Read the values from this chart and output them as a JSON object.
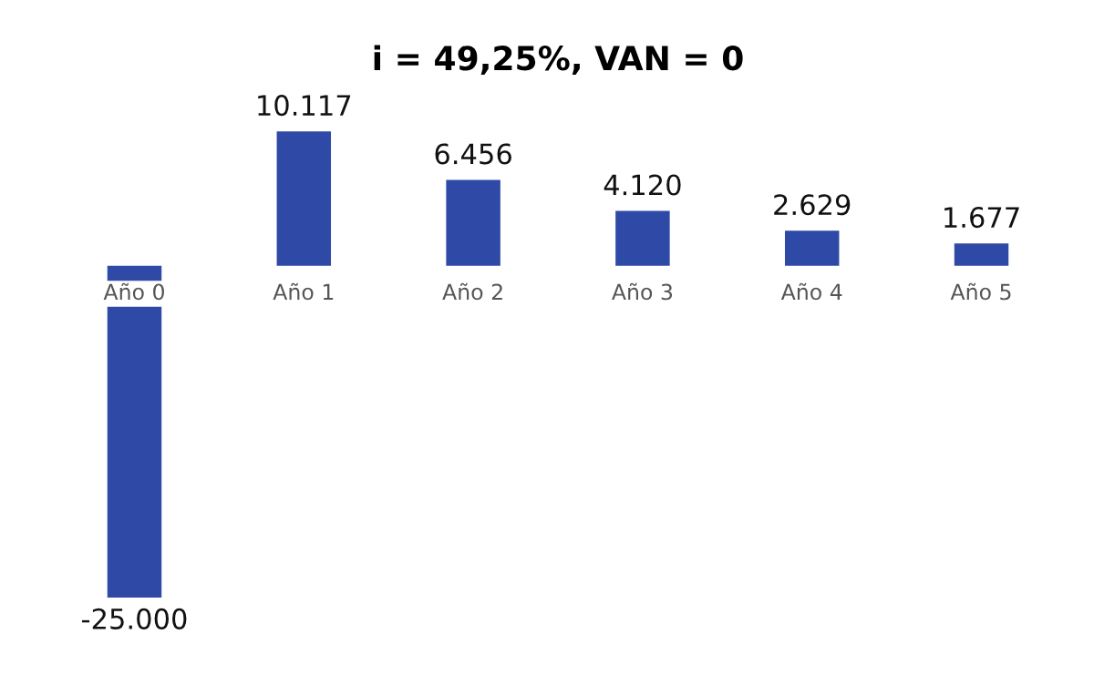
{
  "chart_data": {
    "type": "bar",
    "title": "i = 49,25%, VAN = 0",
    "categories": [
      "Año 0",
      "Año 1",
      "Año 2",
      "Año 3",
      "Año 4",
      "Año 5"
    ],
    "values": [
      -25000,
      10117,
      6456,
      4120,
      2629,
      1677
    ],
    "value_labels": [
      "-25.000",
      "10.117",
      "6.456",
      "4.120",
      "2.629",
      "1.677"
    ],
    "color": "#2e4aa6",
    "grid": false,
    "legend": false
  }
}
